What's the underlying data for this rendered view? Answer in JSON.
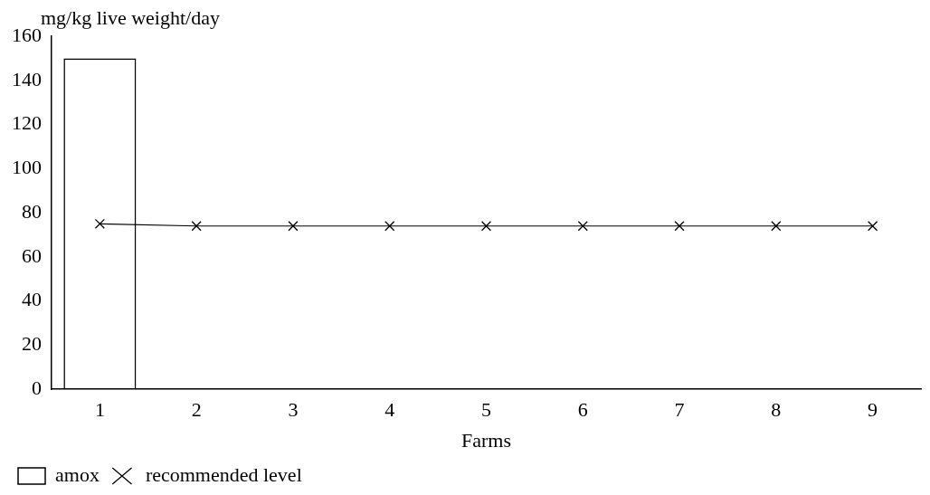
{
  "chart_data": {
    "type": "bar",
    "xlabel": "Farms",
    "ylabel": "mg/kg live weight/day",
    "categories": [
      "1",
      "2",
      "3",
      "4",
      "5",
      "6",
      "7",
      "8",
      "9"
    ],
    "series": [
      {
        "name": "amox",
        "color": "#000000",
        "values": [
          150,
          0,
          0,
          0,
          0,
          0,
          0,
          0,
          0
        ]
      },
      {
        "name": "recommended level",
        "type": "line",
        "color": "#000000",
        "marker": "cross",
        "values": [
          75,
          74,
          74,
          74,
          74,
          74,
          74,
          74,
          74
        ]
      }
    ],
    "ylim": [
      0,
      160
    ],
    "yticks": [
      0,
      20,
      40,
      60,
      80,
      100,
      120,
      140,
      160
    ],
    "grid": false,
    "legend": "bottom left"
  }
}
